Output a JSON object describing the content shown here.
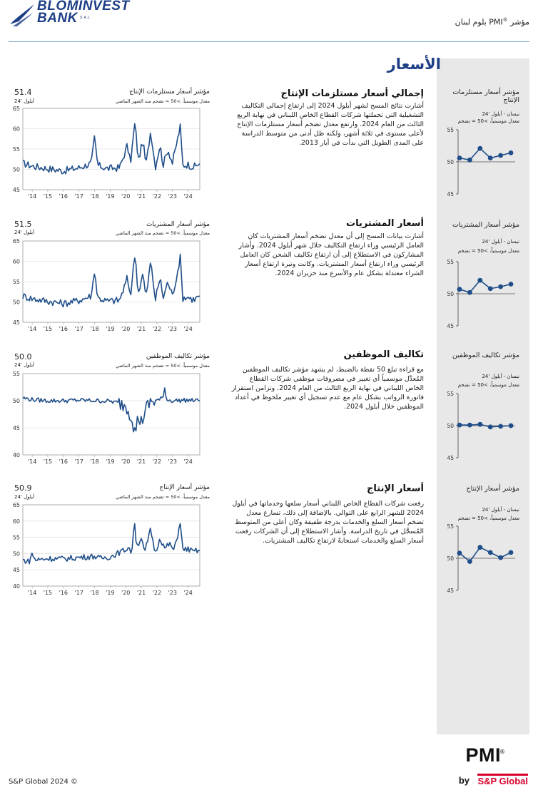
{
  "header": {
    "logo_line1": "BLOMINVEST",
    "logo_line2": "BANK",
    "logo_sal": "S.A.L",
    "title_pre": "مؤشر ",
    "title_pmi": "PMI",
    "title_reg": "®",
    "title_post": " بلوم لبنان"
  },
  "section_title": "الأسعار",
  "side_panel": {
    "charts": [
      {
        "title": "مؤشر أسعار مستلزمات الإنتاج",
        "period": "نيسان - أيلول '24",
        "note": "معدل موسمياً، >50 = تضخم"
      },
      {
        "title": "مؤشر أسعار المشتريات",
        "period": "نيسان - أيلول '24",
        "note": "معدل موسمياً، >50 = تضخم"
      },
      {
        "title": "مؤشر تكاليف الموظفين",
        "period": "نيسان - أيلول '24",
        "note": "معدل موسمياً، >50 = تضخم"
      },
      {
        "title": "مؤشر أسعار الإنتاج",
        "period": "نيسان - أيلول '24",
        "note": "معدل موسمياً، >50 = تضخم"
      }
    ]
  },
  "blocks": [
    {
      "heading": "إجمالي أسعار مستلزمات الإنتاج",
      "body": "أشارت نتائج المسح لشهر أيلول 2024 إلى ارتفاع إجمالي التكاليف التشغيلية التي تحملتها شركات القطاع الخاص اللبناني في نهاية الربع الثالث من العام 2024. وارتفع معدل تضخم أسعار مستلزمات الإنتاج لأعلى مستوى في ثلاثة أشهر، ولكنه ظل أدنى من متوسط الدراسة على المدى الطويل التي بدأت في أيار 2013.",
      "chart_label": "مؤشر أسعار مستلزمات الإنتاج",
      "chart_note": "معدل موسمياً، >50 = تضخم منذ الشهر الماضي",
      "value": "51.4",
      "month": "أيلول '24"
    },
    {
      "heading": "أسعار المشتريات",
      "body": "أشارت بيانات المسح إلى أن معدل تضخم أسعار المشتريات كان العامل الرئيسي وراء ارتفاع التكاليف خلال شهر أيلول 2024. وأشار المشاركون في الاستطلاع إلى أن ارتفاع تكاليف الشحن كان العامل الرئيسي وراء ارتفاع أسعار المشتريات. وكانت وتيرة ارتفاع أسعار الشراء معتدلة بشكل عام والأسرع منذ حزيران 2024.",
      "chart_label": "مؤشر أسعار المشتريات",
      "chart_note": "معدل موسمياً، >50 = تضخم منذ الشهر الماضي",
      "value": "51.5",
      "month": "أيلول '24"
    },
    {
      "heading": "تكاليف الموظفين",
      "body": "مع قراءة تبلغ 50 نقطة بالضبط، لم يشهد مؤشر تكاليف الموظفين المُعدَّل موسمياً أي تغيير في مصروفات موظفي شركات القطاع الخاص اللبناني في نهاية الربع الثالث من العام 2024. وتزامن استقرار فاتورة الرواتب بشكل عام مع عدم تسجيل أي تغيير ملحوظ في أعداد الموظفين خلال أيلول 2024.",
      "chart_label": "مؤشر تكاليف الموظفين",
      "chart_note": "معدل موسمياً، >50 = تضخم منذ الشهر الماضي",
      "value": "50.0",
      "month": "أيلول '24"
    },
    {
      "heading": "أسعار الإنتاج",
      "body": "رفعت شركات القطاع الخاص اللبناني أسعار سلعها وخدماتها في أيلول 2024 للشهر الرابع على التوالي. بالإضافة إلى ذلك، تسارع معدل تضخم أسعار السلع والخدمات بدرجة طفيفة وكان أعلى من المتوسط المُسجَّل في تاريخ الدراسة. وأشار الاستطلاع إلى أن الشركات رفعت أسعار السلع والخدمات استجابةً لارتفاع تكاليف المشتريات.",
      "chart_label": "مؤشر أسعار الإنتاج",
      "chart_note": "معدل موسمياً، >50 = تضخم منذ الشهر الماضي",
      "value": "50.9",
      "month": "أيلول '24"
    }
  ],
  "chart_data": [
    {
      "type": "line",
      "title": "مؤشر أسعار مستلزمات الإنتاج",
      "x_tick_labels": [
        "'14",
        "'15",
        "'16",
        "'17",
        "'18",
        "'19",
        "'20",
        "'21",
        "'22",
        "'23",
        "'24"
      ],
      "y_ticks": [
        45,
        50,
        55,
        60,
        65
      ],
      "ylim": [
        45,
        65
      ],
      "anchors": [
        [
          2013.4,
          51.5
        ],
        [
          2014.0,
          50.8
        ],
        [
          2015.0,
          50.2
        ],
        [
          2016.0,
          49.6
        ],
        [
          2017.0,
          50.4
        ],
        [
          2017.8,
          51.5
        ],
        [
          2018.0,
          58
        ],
        [
          2018.2,
          51
        ],
        [
          2018.8,
          50.2
        ],
        [
          2019.6,
          50.4
        ],
        [
          2019.9,
          53.5
        ],
        [
          2020.1,
          56
        ],
        [
          2020.3,
          51.5
        ],
        [
          2020.6,
          61.8
        ],
        [
          2020.8,
          52
        ],
        [
          2021.1,
          57
        ],
        [
          2021.3,
          51
        ],
        [
          2021.6,
          59.6
        ],
        [
          2021.9,
          50.5
        ],
        [
          2022.2,
          56
        ],
        [
          2022.4,
          51
        ],
        [
          2022.7,
          55
        ],
        [
          2023.0,
          51.5
        ],
        [
          2023.3,
          57
        ],
        [
          2023.5,
          60.5
        ],
        [
          2023.65,
          51
        ],
        [
          2024.0,
          51.2
        ],
        [
          2024.3,
          50.6
        ],
        [
          2024.5,
          50.8
        ],
        [
          2024.67,
          51.4
        ]
      ],
      "grid": true
    },
    {
      "type": "line",
      "title": "مؤشر أسعار المشتريات",
      "x_tick_labels": [
        "'14",
        "'15",
        "'16",
        "'17",
        "'18",
        "'19",
        "'20",
        "'21",
        "'22",
        "'23",
        "'24"
      ],
      "y_ticks": [
        45,
        50,
        55,
        60,
        65
      ],
      "ylim": [
        45,
        65
      ],
      "anchors": [
        [
          2013.4,
          51.5
        ],
        [
          2014.0,
          50.8
        ],
        [
          2015.0,
          50.2
        ],
        [
          2016.0,
          49.6
        ],
        [
          2017.0,
          50.4
        ],
        [
          2017.8,
          51.5
        ],
        [
          2018.0,
          58
        ],
        [
          2018.2,
          51
        ],
        [
          2018.8,
          50.2
        ],
        [
          2019.6,
          50.4
        ],
        [
          2019.9,
          53.5
        ],
        [
          2020.1,
          56
        ],
        [
          2020.3,
          51.5
        ],
        [
          2020.6,
          62.2
        ],
        [
          2020.8,
          52
        ],
        [
          2021.1,
          57
        ],
        [
          2021.3,
          51
        ],
        [
          2021.6,
          60
        ],
        [
          2021.9,
          50.5
        ],
        [
          2022.2,
          56
        ],
        [
          2022.4,
          51
        ],
        [
          2022.7,
          55
        ],
        [
          2023.0,
          51.5
        ],
        [
          2023.3,
          57
        ],
        [
          2023.5,
          61
        ],
        [
          2023.65,
          51
        ],
        [
          2024.0,
          51.2
        ],
        [
          2024.3,
          50.6
        ],
        [
          2024.5,
          50.8
        ],
        [
          2024.67,
          51.5
        ]
      ],
      "grid": true
    },
    {
      "type": "line",
      "title": "مؤشر تكاليف الموظفين",
      "x_tick_labels": [
        "'14",
        "'15",
        "'16",
        "'17",
        "'18",
        "'19",
        "'20",
        "'21",
        "'22",
        "'23",
        "'24"
      ],
      "y_ticks": [
        40,
        45,
        50,
        55
      ],
      "ylim": [
        40,
        55
      ],
      "anchors": [
        [
          2013.4,
          50.5
        ],
        [
          2014.0,
          50.2
        ],
        [
          2015.0,
          50.0
        ],
        [
          2016.0,
          50.0
        ],
        [
          2017.0,
          50.1
        ],
        [
          2018.0,
          50.0
        ],
        [
          2019.0,
          49.9
        ],
        [
          2019.5,
          49.6
        ],
        [
          2020.0,
          49.2
        ],
        [
          2020.4,
          47
        ],
        [
          2020.6,
          44
        ],
        [
          2020.8,
          47
        ],
        [
          2021.0,
          46
        ],
        [
          2021.3,
          48.5
        ],
        [
          2021.6,
          49.8
        ],
        [
          2022.0,
          50.0
        ],
        [
          2022.4,
          50.5
        ],
        [
          2022.5,
          52.8
        ],
        [
          2022.6,
          50.2
        ],
        [
          2023.0,
          50.0
        ],
        [
          2024.0,
          50.1
        ],
        [
          2024.67,
          50.0
        ]
      ],
      "grid": true
    },
    {
      "type": "line",
      "title": "مؤشر أسعار الإنتاج",
      "x_tick_labels": [
        "'14",
        "'15",
        "'16",
        "'17",
        "'18",
        "'19",
        "'20",
        "'21",
        "'22",
        "'23",
        "'24"
      ],
      "y_ticks": [
        40,
        45,
        50,
        55,
        60,
        65
      ],
      "ylim": [
        40,
        65
      ],
      "anchors": [
        [
          2013.4,
          48
        ],
        [
          2013.8,
          47.5
        ],
        [
          2014.0,
          50
        ],
        [
          2014.2,
          48
        ],
        [
          2015.0,
          48.5
        ],
        [
          2016.0,
          48.4
        ],
        [
          2017.0,
          48.8
        ],
        [
          2018.0,
          49.2
        ],
        [
          2018.3,
          48.5
        ],
        [
          2019.0,
          49
        ],
        [
          2019.9,
          51
        ],
        [
          2020.2,
          52
        ],
        [
          2020.4,
          50
        ],
        [
          2020.55,
          61.2
        ],
        [
          2020.7,
          52
        ],
        [
          2021.0,
          55
        ],
        [
          2021.2,
          50
        ],
        [
          2021.6,
          57.5
        ],
        [
          2021.9,
          50
        ],
        [
          2022.2,
          55
        ],
        [
          2022.5,
          51.5
        ],
        [
          2022.8,
          53
        ],
        [
          2023.1,
          51
        ],
        [
          2023.35,
          56
        ],
        [
          2023.5,
          60
        ],
        [
          2023.65,
          51
        ],
        [
          2024.0,
          51.5
        ],
        [
          2024.3,
          50.5
        ],
        [
          2024.5,
          50.8
        ],
        [
          2024.67,
          50.9
        ]
      ],
      "grid": true
    }
  ],
  "side_chart_data": [
    {
      "type": "line",
      "y_ticks": [
        45,
        50,
        55
      ],
      "ylim": [
        45,
        55
      ],
      "values": [
        50.6,
        50.3,
        52.1,
        50.6,
        51.0,
        51.4
      ]
    },
    {
      "type": "line",
      "y_ticks": [
        45,
        50,
        55
      ],
      "ylim": [
        45,
        55
      ],
      "values": [
        50.7,
        50.2,
        52.1,
        50.8,
        51.1,
        51.5
      ]
    },
    {
      "type": "line",
      "y_ticks": [
        45,
        50,
        55
      ],
      "ylim": [
        45,
        55
      ],
      "values": [
        50.1,
        50.1,
        50.2,
        49.8,
        49.9,
        50.0
      ]
    },
    {
      "type": "line",
      "y_ticks": [
        45,
        50,
        55
      ],
      "ylim": [
        45,
        55
      ],
      "values": [
        50.8,
        49.5,
        51.7,
        50.9,
        50.1,
        50.9
      ]
    }
  ],
  "footer": {
    "copyright": "S&P Global 2024 ©",
    "pmi": "PMI",
    "pmi_reg": "®",
    "by": "by",
    "sp": "S&P Global"
  },
  "colors": {
    "brand_blue": "#1d3f86",
    "series_blue": "#1f4e89",
    "sp_red": "#d6002a",
    "panel_grey": "#e8e8e8"
  }
}
